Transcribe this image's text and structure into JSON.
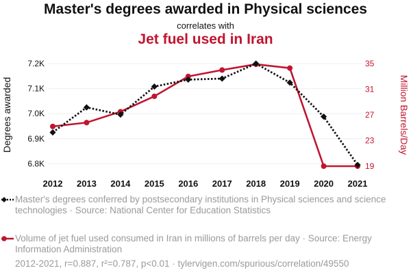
{
  "header": {
    "title": "Master's degrees awarded in Physical sciences",
    "subtitle": "correlates with",
    "title2": "Jet fuel used in Iran"
  },
  "colors": {
    "series1": "#111111",
    "series2": "#c0152f",
    "grid": "#eeeeee"
  },
  "chart_data": {
    "type": "line",
    "x": [
      2012,
      2013,
      2014,
      2015,
      2016,
      2017,
      2018,
      2019,
      2020,
      2021
    ],
    "xticks": [
      "2012",
      "2013",
      "2014",
      "2015",
      "2016",
      "2017",
      "2018",
      "2019",
      "2020",
      "2021"
    ],
    "series": [
      {
        "name": "Master's degrees conferred by postsecondary institutions in Physical sciences and science technologies",
        "axis": "left",
        "style": "dotted",
        "marker": "diamond",
        "values": [
          6925,
          7025,
          6996,
          7108,
          7136,
          7140,
          7200,
          7124,
          6988,
          6795
        ]
      },
      {
        "name": "Volume of jet fuel used consumed in Iran in millions of barrels per day",
        "axis": "right",
        "style": "solid",
        "marker": "circle",
        "values": [
          25.2,
          25.8,
          27.5,
          29.9,
          33.0,
          34.0,
          34.9,
          34.3,
          19.0,
          19.0
        ]
      }
    ],
    "yleft": {
      "label": "Degrees awarded",
      "ylim": [
        6790,
        7200
      ],
      "ticks": [
        6800,
        6900,
        7000,
        7100,
        7200
      ],
      "tick_labels": [
        "6.8K",
        "6.9K",
        "7.0K",
        "7.1K",
        "7.2K"
      ]
    },
    "yright": {
      "label": "Million Barrels/Day",
      "ylim": [
        19,
        35
      ],
      "ticks": [
        19,
        23,
        27,
        31,
        35
      ],
      "tick_labels": [
        "19",
        "23",
        "27",
        "31",
        "35"
      ]
    }
  },
  "legend": {
    "item1": "Master's degrees conferred by postsecondary institutions in Physical sciences and science technologies · Source: National Center for Education Statistics",
    "item2": "Volume of jet fuel used consumed in Iran in millions of barrels per day · Source: Energy Information Administration"
  },
  "footer": "2012-2021, r=0.887, r²=0.787, p<0.01 · tylervigen.com/spurious/correlation/49550"
}
